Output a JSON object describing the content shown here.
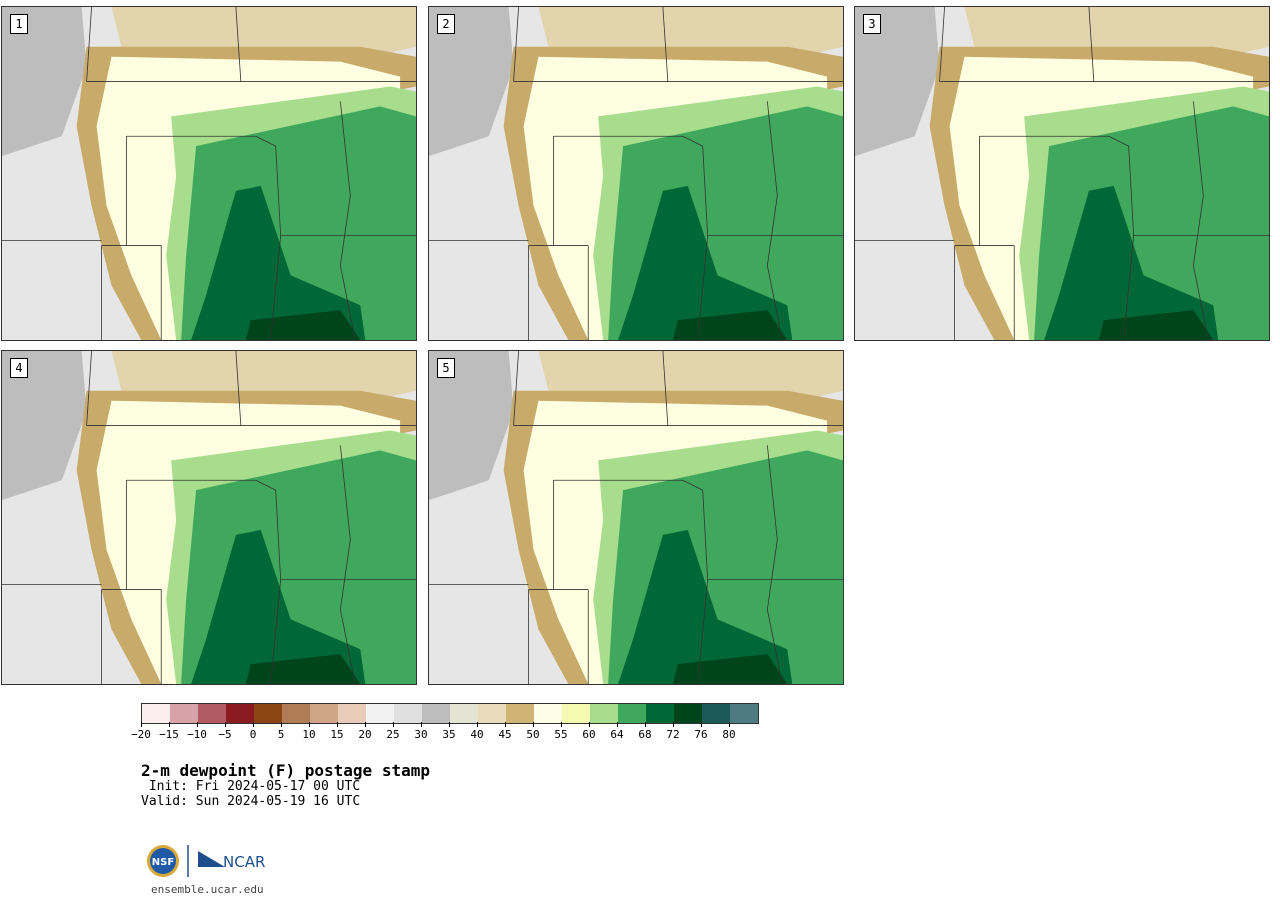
{
  "title": "2-m dewpoint (F) postage stamp",
  "init": " Init: Fri 2024-05-17 00 UTC",
  "valid": "Valid: Sun 2024-05-19 16 UTC",
  "url": "ensemble.ucar.edu",
  "logo": {
    "nsf": "NSF",
    "ncar": "NCAR"
  },
  "panels": [
    {
      "label": "1",
      "dry": "#fefee0",
      "moist": "#3fa85c",
      "core": "#006837",
      "deep": "#00441b"
    },
    {
      "label": "2",
      "dry": "#fefee0",
      "moist": "#3fa85c",
      "core": "#006837",
      "deep": "#00441b"
    },
    {
      "label": "3",
      "dry": "#fefee0",
      "moist": "#3fa85c",
      "core": "#006837",
      "deep": "#00441b"
    },
    {
      "label": "4",
      "dry": "#fefee0",
      "moist": "#3fa85c",
      "core": "#006837",
      "deep": "#00441b"
    },
    {
      "label": "5",
      "dry": "#fefee0",
      "moist": "#3fa85c",
      "core": "#006837",
      "deep": "#00441b"
    }
  ],
  "colorbar": {
    "colors": [
      "#fbeeef",
      "#d7a3a9",
      "#b05a64",
      "#8c1a22",
      "#8a4513",
      "#b07c56",
      "#cfa587",
      "#e8cbb8",
      "#f2f2f2",
      "#e0e0e0",
      "#bdbdbd",
      "#e4e4d4",
      "#e8dcbc",
      "#cfb476",
      "#fefee6",
      "#f6f9b2",
      "#a8dd8e",
      "#3fa85c",
      "#006837",
      "#00441b",
      "#1c5a5a",
      "#4e7b82"
    ],
    "tick_values": [
      "−20",
      "−15",
      "−10",
      "−5",
      "0",
      "5",
      "10",
      "15",
      "20",
      "25",
      "30",
      "35",
      "40",
      "45",
      "50",
      "55",
      "60",
      "64",
      "68",
      "72",
      "76",
      "80"
    ]
  }
}
